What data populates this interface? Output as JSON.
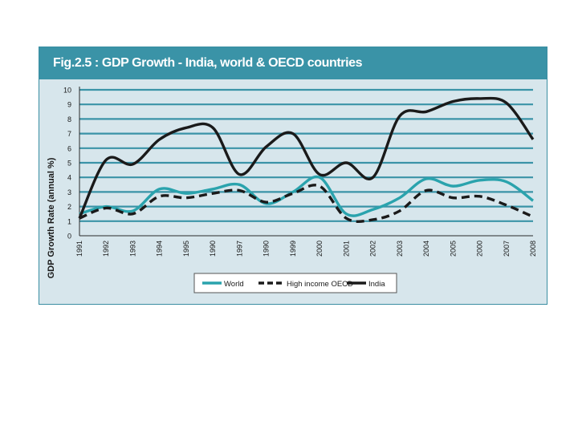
{
  "chart_data": {
    "type": "line",
    "title": "Fig.2.5 : GDP  Growth - India, world & OECD countries",
    "xlabel": "",
    "ylabel": "GDP Growth Rate (annual %)",
    "ylim": [
      0,
      10
    ],
    "yticks": [
      "0",
      "1",
      "2",
      "3",
      "4",
      "5",
      "6",
      "7",
      "8",
      "9",
      "10"
    ],
    "categories": [
      "1991",
      "1992",
      "1993",
      "1994",
      "1995",
      "1990",
      "1997",
      "1990",
      "1999",
      "2000",
      "2001",
      "2002",
      "2003",
      "2004",
      "2005",
      "2000",
      "2007",
      "2008"
    ],
    "grid": true,
    "legend_position": "bottom-center",
    "series": [
      {
        "name": "World",
        "style": "solid",
        "color": "#2aa3ad",
        "values": [
          1.5,
          2.0,
          1.7,
          3.2,
          2.9,
          3.2,
          3.5,
          2.2,
          3.0,
          4.0,
          1.5,
          1.8,
          2.6,
          3.9,
          3.4,
          3.8,
          3.7,
          2.4
        ]
      },
      {
        "name": "High income OECD",
        "style": "dashed",
        "color": "#1a1a1a",
        "values": [
          1.2,
          1.9,
          1.5,
          2.7,
          2.6,
          2.9,
          3.1,
          2.3,
          2.9,
          3.4,
          1.2,
          1.1,
          1.7,
          3.1,
          2.6,
          2.7,
          2.1,
          1.3
        ]
      },
      {
        "name": "India",
        "style": "solid",
        "color": "#1a1a1a",
        "values": [
          1.2,
          5.2,
          4.9,
          6.6,
          7.4,
          7.4,
          4.2,
          6.1,
          7.0,
          4.2,
          5.0,
          4.0,
          8.2,
          8.5,
          9.2,
          9.4,
          9.1,
          6.6
        ]
      }
    ]
  },
  "colors": {
    "panel_bg": "#d7e6ec",
    "title_bar": "#3a93a7",
    "gridline": "#3a93a7"
  }
}
